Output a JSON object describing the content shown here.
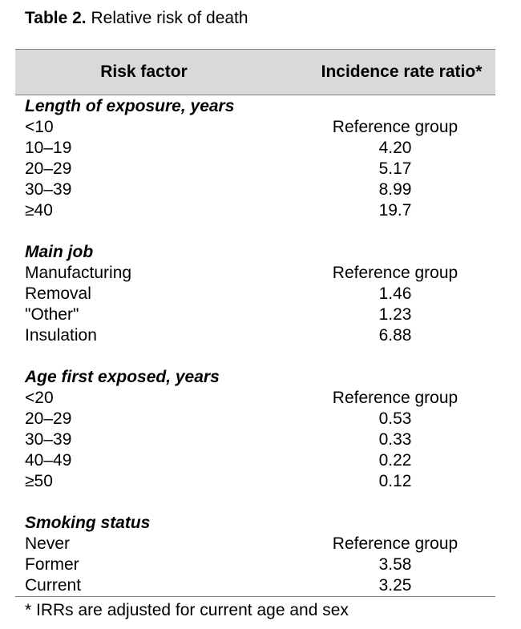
{
  "caption": {
    "label": "Table 2.",
    "text": " Relative risk of death"
  },
  "headers": {
    "col1": "Risk factor",
    "col2": "Incidence rate ratio*"
  },
  "groups": [
    {
      "title": "Length of exposure, years",
      "rows": [
        {
          "factor": "<10",
          "irr": "Reference group"
        },
        {
          "factor": "10–19",
          "irr": "4.20"
        },
        {
          "factor": "20–29",
          "irr": "5.17"
        },
        {
          "factor": "30–39",
          "irr": "8.99"
        },
        {
          "factor": "≥40",
          "irr": "19.7"
        }
      ]
    },
    {
      "title": "Main job",
      "rows": [
        {
          "factor": "Manufacturing",
          "irr": "Reference group"
        },
        {
          "factor": "Removal",
          "irr": "1.46"
        },
        {
          "factor": "\"Other\"",
          "irr": "1.23"
        },
        {
          "factor": "Insulation",
          "irr": "6.88"
        }
      ]
    },
    {
      "title": "Age first exposed, years",
      "rows": [
        {
          "factor": "<20",
          "irr": "Reference group"
        },
        {
          "factor": "20–29",
          "irr": "0.53"
        },
        {
          "factor": "30–39",
          "irr": "0.33"
        },
        {
          "factor": "40–49",
          "irr": "0.22"
        },
        {
          "factor": "≥50",
          "irr": "0.12"
        }
      ]
    },
    {
      "title": "Smoking status",
      "rows": [
        {
          "factor": "Never",
          "irr": "Reference group"
        },
        {
          "factor": "Former",
          "irr": "3.58"
        },
        {
          "factor": "Current",
          "irr": "3.25"
        }
      ]
    }
  ],
  "footnote": "* IRRs are adjusted for current age and sex"
}
